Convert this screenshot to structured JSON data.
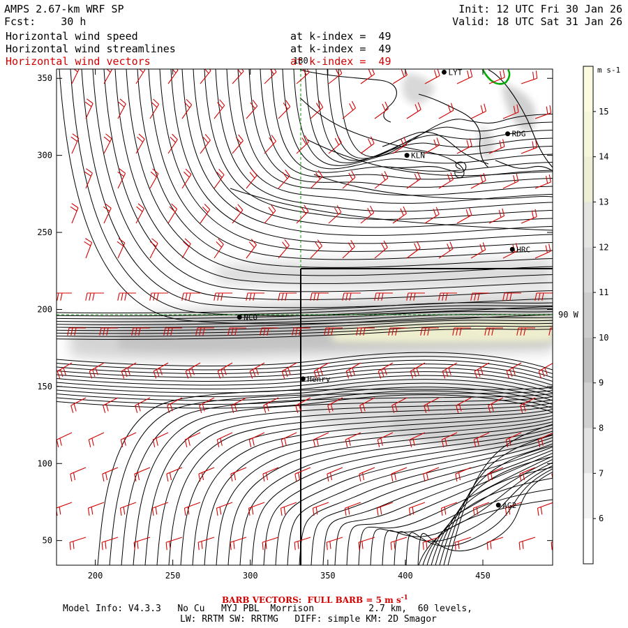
{
  "header": {
    "model": "AMPS 2.67-km WRF SP",
    "forecast": "Fcst:    30 h",
    "init": "Init: 12 UTC Fri 30 Jan 26",
    "valid": "Valid: 18 UTC Sat 31 Jan 26",
    "fields": [
      {
        "label": "Horizontal wind speed",
        "level": "at k-index =  49",
        "color": "#000000"
      },
      {
        "label": "Horizontal wind streamlines",
        "level": "at k-index =  49",
        "color": "#000000"
      },
      {
        "label": "Horizontal wind vectors",
        "level": "at k-index =  49",
        "color": "#d40000"
      }
    ]
  },
  "axes": {
    "x_ticks": [
      "200",
      "250",
      "300",
      "350",
      "400",
      "450"
    ],
    "y_ticks": [
      "50",
      "100",
      "150",
      "200",
      "250",
      "300",
      "350"
    ],
    "x_range": [
      175,
      495
    ],
    "y_range": [
      34,
      356
    ]
  },
  "reference_lines": {
    "meridian_label": "180",
    "parallel_label": "90 W"
  },
  "stations": [
    {
      "id": "LYT",
      "x": 425,
      "y": 354
    },
    {
      "id": "RDG",
      "x": 466,
      "y": 314
    },
    {
      "id": "KLN",
      "x": 401,
      "y": 300
    },
    {
      "id": "HRC",
      "x": 469,
      "y": 239
    },
    {
      "id": "NCO",
      "x": 293,
      "y": 195
    },
    {
      "id": "Henry",
      "x": 334,
      "y": 155
    },
    {
      "id": "AG2",
      "x": 460,
      "y": 73
    }
  ],
  "colorbar": {
    "unit": "m s-1",
    "labels": [
      "15",
      "14",
      "13",
      "12",
      "11",
      "10",
      "9",
      "8",
      "7",
      "6"
    ],
    "levels": [
      15,
      14,
      13,
      12,
      11,
      10,
      9,
      8,
      7,
      6
    ],
    "colors": [
      "#fcfbe0",
      "#f6f6da",
      "#eeeed4",
      "#e4e4e0",
      "#d8d8d8",
      "#cccccc",
      "#c0c0c0",
      "#d0d0d0",
      "#e2e2e2",
      "#f2f2f2",
      "#ffffff"
    ]
  },
  "footer": {
    "barb_note": "BARB VECTORS:  FULL BARB = 5 m s",
    "barb_exp": "-1",
    "model_info": "Model Info: V4.3.3   No Cu   MYJ PBL  Morrison          2.7 km,  60 levels,",
    "physics": "LW: RRTM SW: RRTMG   DIFF: simple KM: 2D Smagor"
  }
}
